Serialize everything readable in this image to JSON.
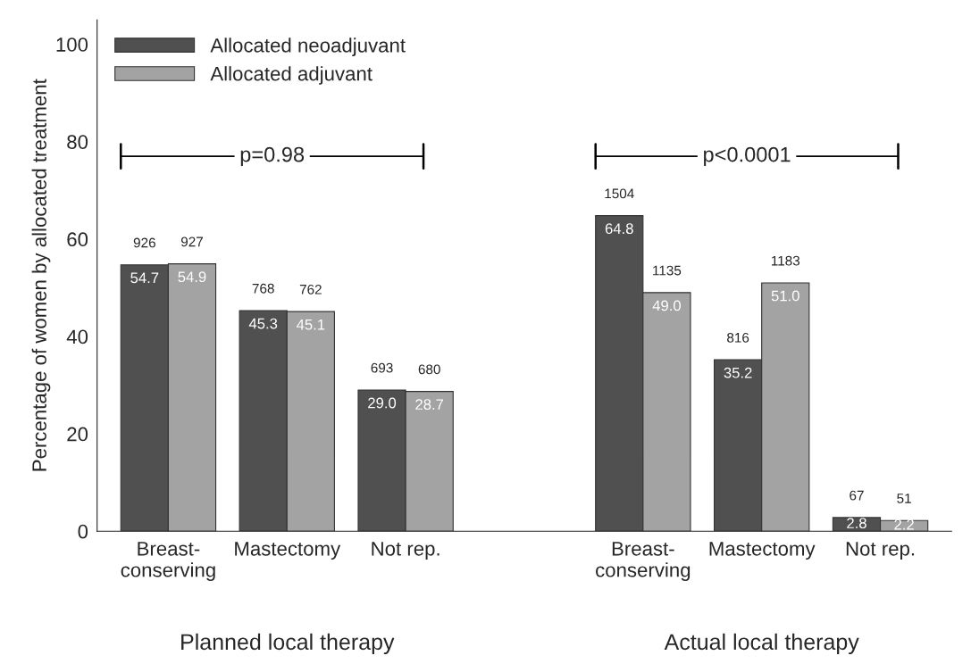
{
  "chart_data": {
    "type": "bar",
    "categories": [
      "Breast-\nconserving",
      "Mastectomy",
      "Not rep.",
      null,
      "Breast-\nconserving",
      "Mastectomy",
      "Not rep."
    ],
    "series": [
      {
        "name": "Allocated neoadjuvant",
        "color": "#505050",
        "values": [
          54.7,
          45.3,
          29.0,
          null,
          64.8,
          35.2,
          2.8
        ],
        "value_labels": [
          "54.7",
          "45.3",
          "29.0",
          null,
          "64.8",
          "35.2",
          "2.8"
        ]
      },
      {
        "name": "Allocated adjuvant",
        "color": "#a3a3a3",
        "values": [
          54.9,
          45.1,
          28.7,
          null,
          49.0,
          51.0,
          2.2
        ],
        "value_labels": [
          "54.9",
          "45.1",
          "28.7",
          null,
          "49.0",
          "51.0",
          "2.2"
        ]
      }
    ],
    "ylabel": "Percentage of women by allocated treatment",
    "ylim": [
      0,
      105
    ],
    "yticks": [
      0,
      20,
      40,
      60,
      80,
      100
    ],
    "legend": "top left",
    "grid": false,
    "annotations": [
      "p=0.98",
      "p<0.0001",
      "Planned local therapy",
      "Actual local therapy",
      "926",
      "927",
      "768",
      "762",
      "693",
      "680",
      "1504",
      "1135",
      "816",
      "1183",
      "67",
      "51"
    ]
  }
}
